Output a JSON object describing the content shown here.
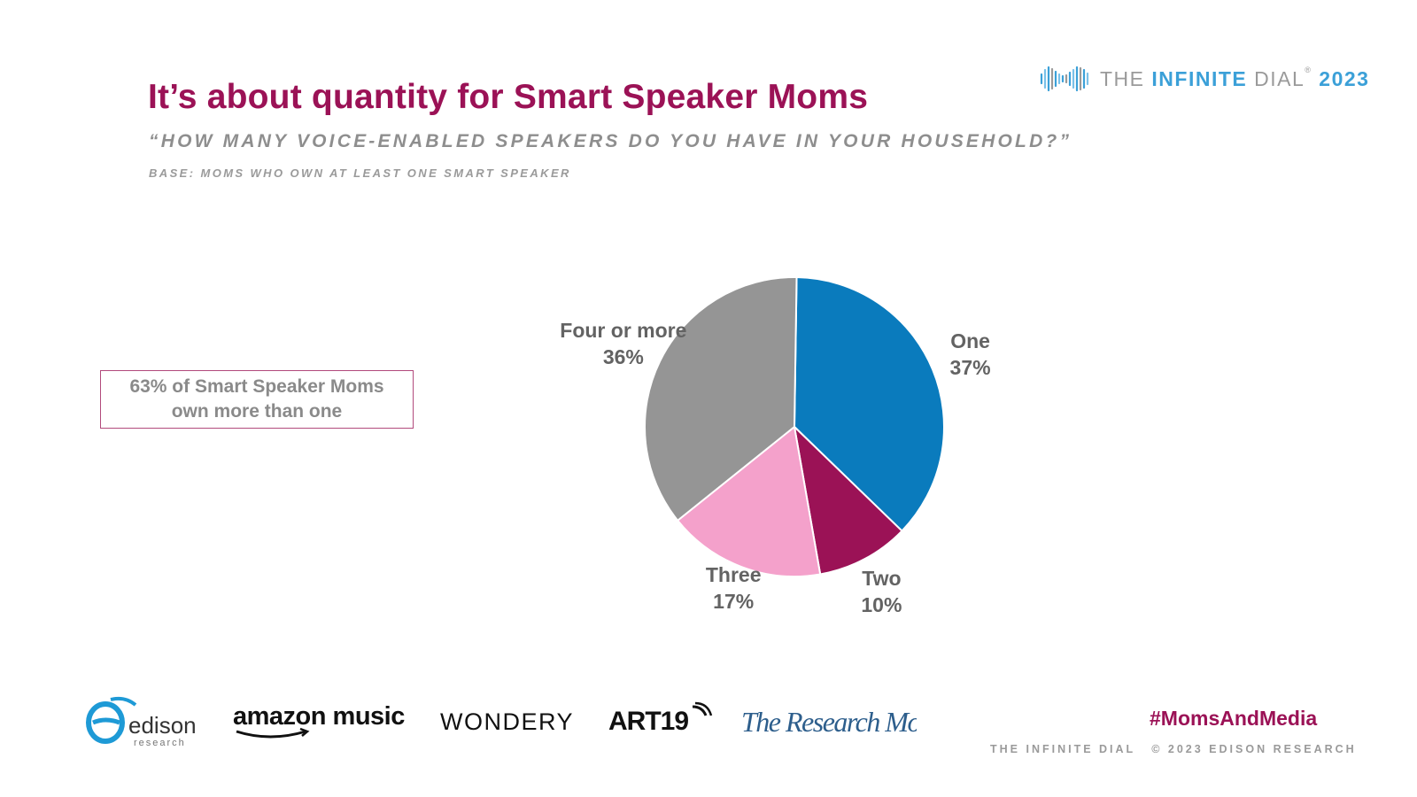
{
  "header": {
    "title": "It’s about quantity for Smart Speaker Moms",
    "subtitle": "“HOW MANY VOICE-ENABLED SPEAKERS DO YOU HAVE IN YOUR HOUSEHOLD?”",
    "base": "BASE: MOMS WHO OWN AT LEAST ONE SMART SPEAKER"
  },
  "brand": {
    "prefix": "THE ",
    "infinite": "INFINITE",
    "dial": " DIAL",
    "registered": "®",
    "year": " 2023",
    "icon": "infinity-bars-icon"
  },
  "callout": {
    "line1": "63% of Smart Speaker Moms",
    "line2": "own more than one"
  },
  "chart_data": {
    "type": "pie",
    "title": "It’s about quantity for Smart Speaker Moms",
    "slices": [
      {
        "label": "One",
        "value": 37,
        "display": "37%",
        "color": "#0a7bbd"
      },
      {
        "label": "Two",
        "value": 10,
        "display": "10%",
        "color": "#9b1256"
      },
      {
        "label": "Three",
        "value": 17,
        "display": "17%",
        "color": "#f4a1cb"
      },
      {
        "label": "Four or more",
        "value": 36,
        "display": "36%",
        "color": "#959595"
      }
    ],
    "start": "top, clockwise",
    "legend": "none (labels beside slices)"
  },
  "footer": {
    "logos": [
      {
        "name": "edison",
        "sub": "research",
        "icon": "edison-research-logo"
      },
      {
        "name": "amazon music",
        "icon": "amazon-music-logo"
      },
      {
        "name": "WONDERY",
        "icon": "wondery-logo"
      },
      {
        "name": "ART19",
        "icon": "art19-logo"
      },
      {
        "name": "The Research Moms",
        "icon": "research-moms-logo"
      }
    ],
    "hashtag": "#MomsAndMedia",
    "note_left": "THE INFINITE DIAL",
    "note_right": "© 2023 EDISON RESEARCH"
  }
}
